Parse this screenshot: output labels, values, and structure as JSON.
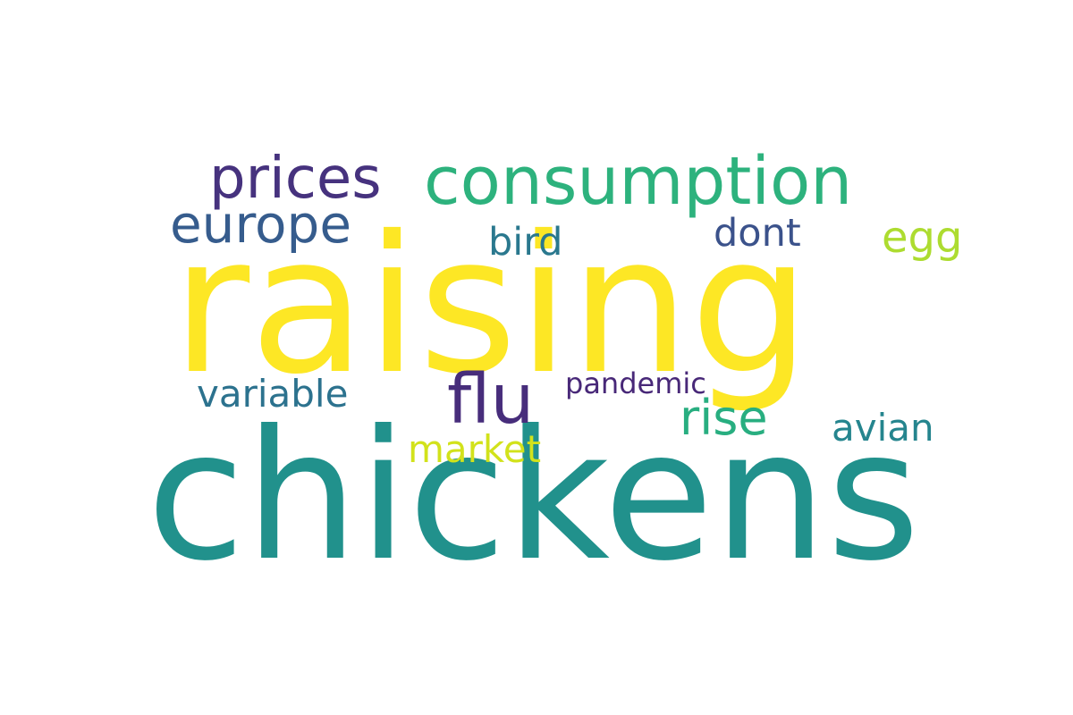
{
  "word_cloud": {
    "background": "#ffffff",
    "words": {
      "raising": {
        "text": "raising",
        "color": "#fde725"
      },
      "chickens": {
        "text": "chickens",
        "color": "#21918c"
      },
      "consumption": {
        "text": "consumption",
        "color": "#2db27d"
      },
      "prices": {
        "text": "prices",
        "color": "#46327e"
      },
      "europe": {
        "text": "europe",
        "color": "#365c8d"
      },
      "flu": {
        "text": "flu",
        "color": "#472d7b"
      },
      "rise": {
        "text": "rise",
        "color": "#28ae80"
      },
      "bird": {
        "text": "bird",
        "color": "#2a788e"
      },
      "dont": {
        "text": "dont",
        "color": "#3b528b"
      },
      "egg": {
        "text": "egg",
        "color": "#addc30"
      },
      "variable": {
        "text": "variable",
        "color": "#2c728e"
      },
      "avian": {
        "text": "avian",
        "color": "#25858e"
      },
      "market": {
        "text": "market",
        "color": "#d2e21b"
      },
      "pandemic": {
        "text": "pandemic",
        "color": "#482878"
      }
    }
  }
}
